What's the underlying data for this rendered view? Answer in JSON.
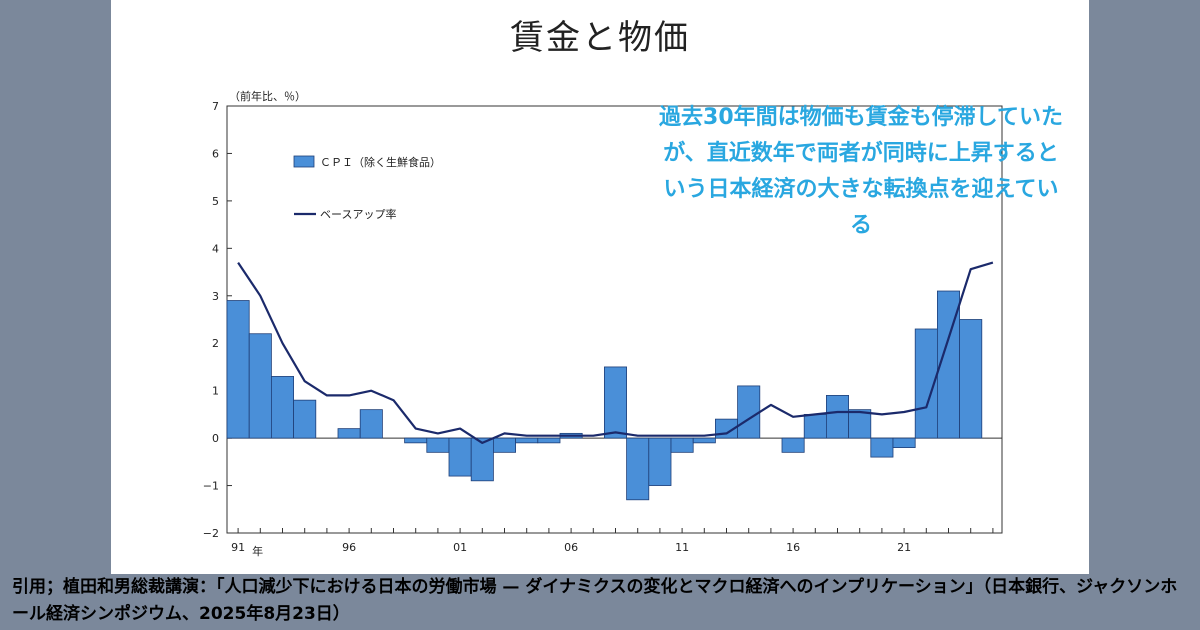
{
  "title": "賃金と物価",
  "callout": "過去30年間は物価も賃金も停滞していたが、直近数年で両者が同時に上昇するという日本経済の大きな転換点を迎えている",
  "citation": "引用；植田和男総裁講演：「人口減少下における日本の労働市場 — ダイナミクスの変化とマクロ経済へのインプリケーション」（日本銀行、ジャクソンホール経済シンポジウム、2025年8月23日）",
  "colors": {
    "bar_fill": "#4a8fd8",
    "bar_stroke": "#1f3f78",
    "line": "#1b2a6b",
    "callout": "#29a7e0",
    "background": "#7b889b"
  },
  "chart_data": {
    "type": "bar",
    "unit_label": "（前年比、％）",
    "ylim": [
      -2,
      7
    ],
    "yticks": [
      "7",
      "6",
      "5",
      "4",
      "3",
      "2",
      "1",
      "0",
      "−1",
      "−2"
    ],
    "ytick_values": [
      7,
      6,
      5,
      4,
      3,
      2,
      1,
      0,
      -1,
      -2
    ],
    "x_tick_labels": [
      "91",
      "96",
      "01",
      "06",
      "11",
      "16",
      "21"
    ],
    "x_tick_years": [
      1991,
      1996,
      2001,
      2006,
      2011,
      2016,
      2021
    ],
    "x_unit": "年",
    "legend_position": "top-left",
    "years": [
      1991,
      1992,
      1993,
      1994,
      1995,
      1996,
      1997,
      1998,
      1999,
      2000,
      2001,
      2002,
      2003,
      2004,
      2005,
      2006,
      2007,
      2008,
      2009,
      2010,
      2011,
      2012,
      2013,
      2014,
      2015,
      2016,
      2017,
      2018,
      2019,
      2020,
      2021,
      2022,
      2023,
      2024,
      2025
    ],
    "series": [
      {
        "name": "ＣＰＩ（除く生鮮食品）",
        "type": "bar",
        "values": [
          2.9,
          2.2,
          1.3,
          0.8,
          0.0,
          0.2,
          0.6,
          0.0,
          -0.1,
          -0.3,
          -0.8,
          -0.9,
          -0.3,
          -0.1,
          -0.1,
          0.1,
          0.0,
          1.5,
          -1.3,
          -1.0,
          -0.3,
          -0.1,
          0.4,
          1.1,
          0.0,
          -0.3,
          0.5,
          0.9,
          0.6,
          -0.4,
          -0.2,
          2.3,
          3.1,
          2.5,
          null
        ]
      },
      {
        "name": "ベースアップ率",
        "type": "line",
        "values": [
          3.7,
          3.0,
          2.0,
          1.2,
          0.9,
          0.9,
          1.0,
          0.8,
          0.2,
          0.1,
          0.2,
          -0.1,
          0.1,
          0.05,
          0.05,
          0.05,
          0.05,
          0.12,
          0.05,
          0.05,
          0.05,
          0.05,
          0.1,
          0.4,
          0.7,
          0.45,
          0.5,
          0.55,
          0.55,
          0.5,
          0.55,
          0.65,
          2.1,
          3.56,
          3.7
        ]
      }
    ]
  }
}
